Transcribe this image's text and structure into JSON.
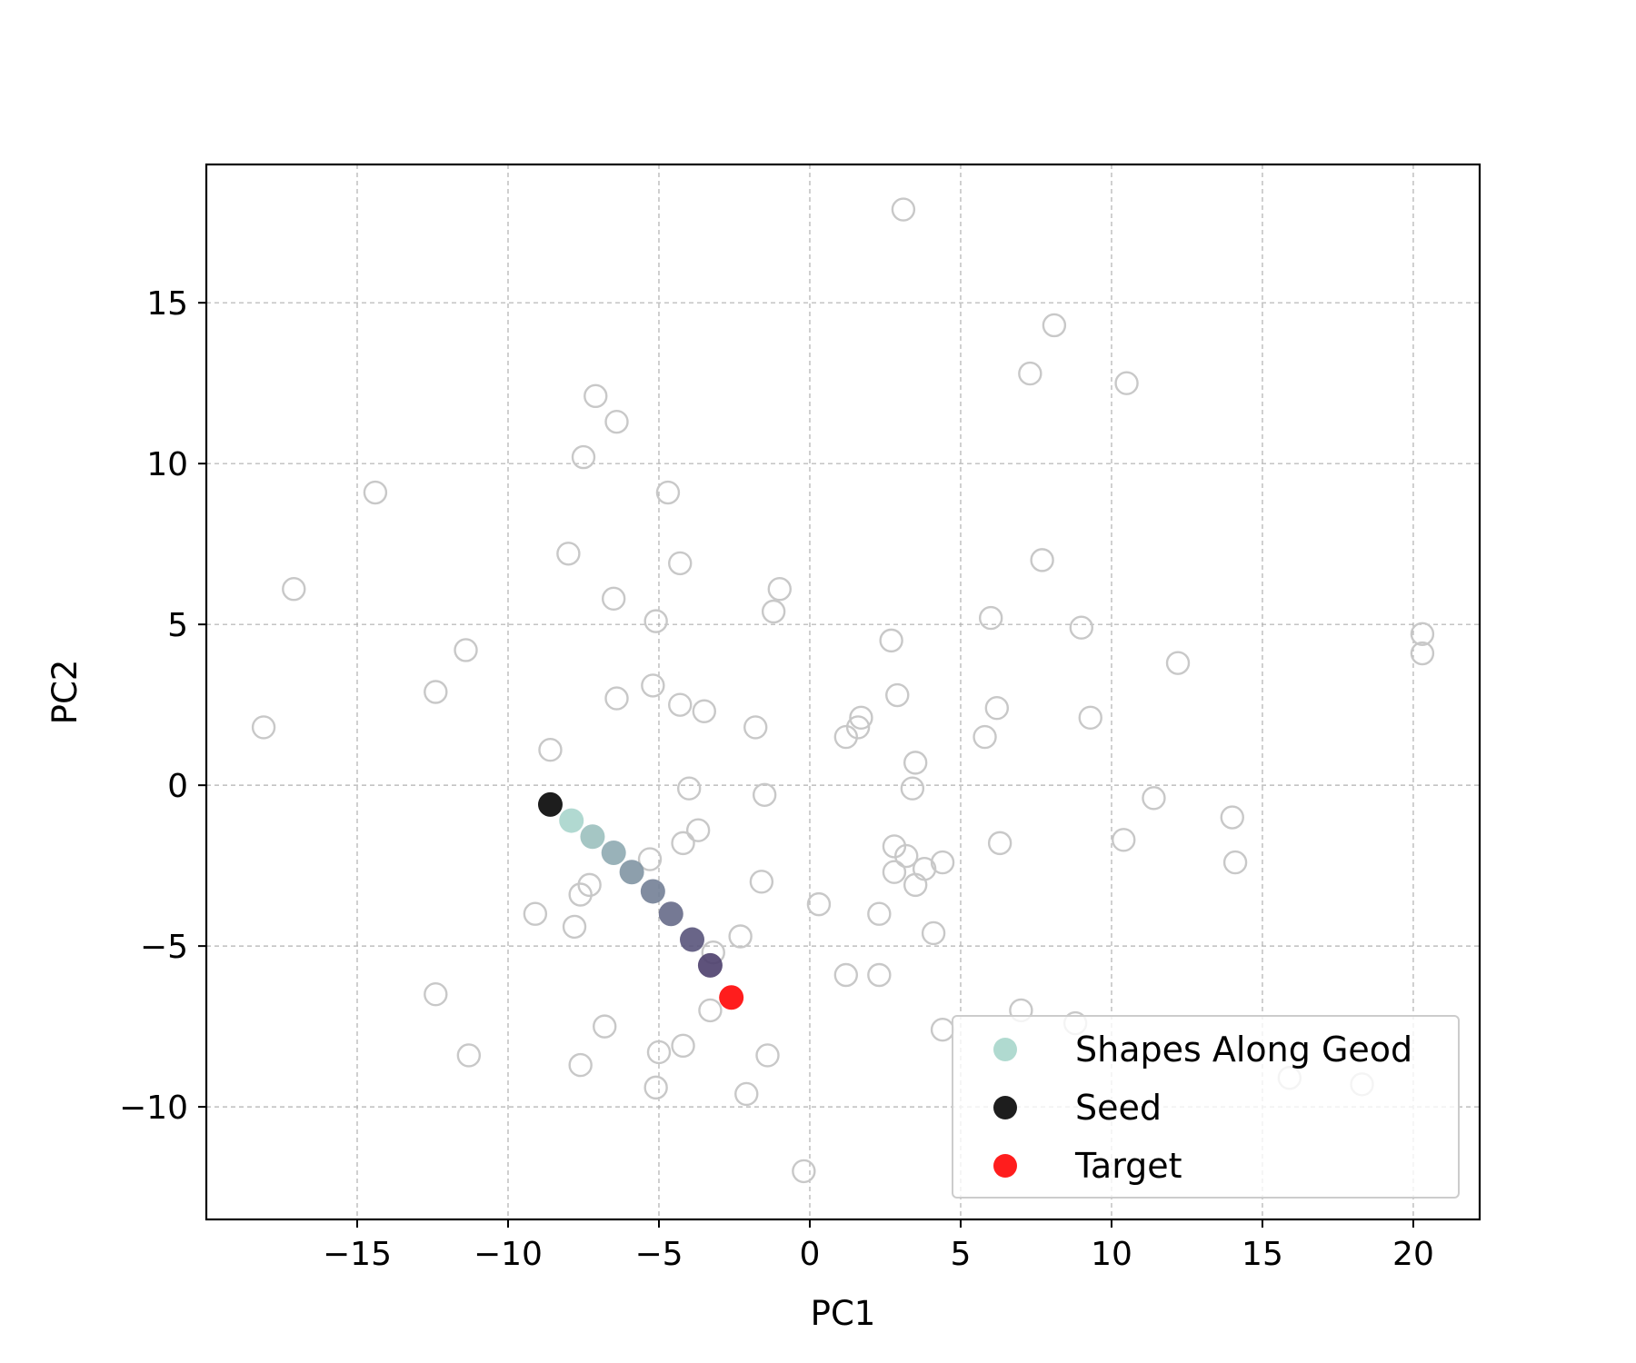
{
  "chart_data": {
    "type": "scatter",
    "title": "",
    "xlabel": "PC1",
    "ylabel": "PC2",
    "xlim": [
      -20,
      22.2
    ],
    "ylim": [
      -13.5,
      19.3
    ],
    "xticks": [
      -15,
      -10,
      -5,
      0,
      5,
      10,
      15,
      20
    ],
    "yticks": [
      -10,
      -5,
      0,
      5,
      10,
      15
    ],
    "xtick_labels": [
      "−15",
      "−10",
      "−5",
      "0",
      "5",
      "10",
      "15",
      "20"
    ],
    "ytick_labels": [
      "−10",
      "−5",
      "0",
      "5",
      "10",
      "15"
    ],
    "grid": true,
    "legend_position": "lower-right",
    "colors": {
      "background_points": "#c8c8c8",
      "seed": "#111111",
      "target": "#ff1111",
      "path_start": "#a8d5cc",
      "path_end": "#4c3f6d",
      "legend_marker": "#acd8ce"
    },
    "series": [
      {
        "role": "background",
        "points": [
          [
            3.1,
            17.9
          ],
          [
            8.1,
            14.3
          ],
          [
            7.3,
            12.8
          ],
          [
            10.5,
            12.5
          ],
          [
            -7.1,
            12.1
          ],
          [
            -6.4,
            11.3
          ],
          [
            -7.5,
            10.2
          ],
          [
            -4.7,
            9.1
          ],
          [
            -14.4,
            9.1
          ],
          [
            -8.0,
            7.2
          ],
          [
            -4.3,
            6.9
          ],
          [
            7.7,
            7.0
          ],
          [
            -17.1,
            6.1
          ],
          [
            -1.0,
            6.1
          ],
          [
            -6.5,
            5.8
          ],
          [
            -1.2,
            5.4
          ],
          [
            -5.1,
            5.1
          ],
          [
            6.0,
            5.2
          ],
          [
            9.0,
            4.9
          ],
          [
            20.3,
            4.7
          ],
          [
            20.3,
            4.1
          ],
          [
            2.7,
            4.5
          ],
          [
            -11.4,
            4.2
          ],
          [
            12.2,
            3.8
          ],
          [
            -5.2,
            3.1
          ],
          [
            -12.4,
            2.9
          ],
          [
            2.9,
            2.8
          ],
          [
            -6.4,
            2.7
          ],
          [
            -4.3,
            2.5
          ],
          [
            -3.5,
            2.3
          ],
          [
            6.2,
            2.4
          ],
          [
            9.3,
            2.1
          ],
          [
            1.7,
            2.1
          ],
          [
            1.6,
            1.8
          ],
          [
            -18.1,
            1.8
          ],
          [
            -1.8,
            1.8
          ],
          [
            1.2,
            1.5
          ],
          [
            5.8,
            1.5
          ],
          [
            -8.6,
            1.1
          ],
          [
            3.5,
            0.7
          ],
          [
            -4.0,
            -0.1
          ],
          [
            3.4,
            -0.1
          ],
          [
            -1.5,
            -0.3
          ],
          [
            11.4,
            -0.4
          ],
          [
            14.0,
            -1.0
          ],
          [
            -3.7,
            -1.4
          ],
          [
            -4.2,
            -1.8
          ],
          [
            6.3,
            -1.8
          ],
          [
            10.4,
            -1.7
          ],
          [
            2.8,
            -1.9
          ],
          [
            3.2,
            -2.2
          ],
          [
            -5.3,
            -2.3
          ],
          [
            14.1,
            -2.4
          ],
          [
            4.4,
            -2.4
          ],
          [
            3.8,
            -2.6
          ],
          [
            2.8,
            -2.7
          ],
          [
            -1.6,
            -3.0
          ],
          [
            3.5,
            -3.1
          ],
          [
            -7.3,
            -3.1
          ],
          [
            -7.6,
            -3.4
          ],
          [
            0.3,
            -3.7
          ],
          [
            -9.1,
            -4.0
          ],
          [
            2.3,
            -4.0
          ],
          [
            -7.8,
            -4.4
          ],
          [
            4.1,
            -4.6
          ],
          [
            -2.3,
            -4.7
          ],
          [
            -3.2,
            -5.2
          ],
          [
            1.2,
            -5.9
          ],
          [
            2.3,
            -5.9
          ],
          [
            -12.4,
            -6.5
          ],
          [
            7.0,
            -7.0
          ],
          [
            8.8,
            -7.4
          ],
          [
            -3.3,
            -7.0
          ],
          [
            -6.8,
            -7.5
          ],
          [
            4.4,
            -7.6
          ],
          [
            -4.2,
            -8.1
          ],
          [
            -5.0,
            -8.3
          ],
          [
            -11.3,
            -8.4
          ],
          [
            -1.4,
            -8.4
          ],
          [
            -7.6,
            -8.7
          ],
          [
            -5.1,
            -9.4
          ],
          [
            -2.1,
            -9.6
          ],
          [
            15.9,
            -9.1
          ],
          [
            18.3,
            -9.3
          ],
          [
            -0.2,
            -12.0
          ]
        ]
      },
      {
        "name": "Shapes Along Geod",
        "role": "path",
        "points": [
          [
            -7.9,
            -1.1
          ],
          [
            -7.2,
            -1.6
          ],
          [
            -6.5,
            -2.1
          ],
          [
            -5.9,
            -2.7
          ],
          [
            -5.2,
            -3.3
          ],
          [
            -4.6,
            -4.0
          ],
          [
            -3.9,
            -4.8
          ],
          [
            -3.3,
            -5.6
          ]
        ]
      },
      {
        "name": "Seed",
        "role": "seed",
        "points": [
          [
            -8.6,
            -0.6
          ]
        ]
      },
      {
        "name": "Target",
        "role": "target",
        "points": [
          [
            -2.6,
            -6.6
          ]
        ]
      }
    ]
  }
}
